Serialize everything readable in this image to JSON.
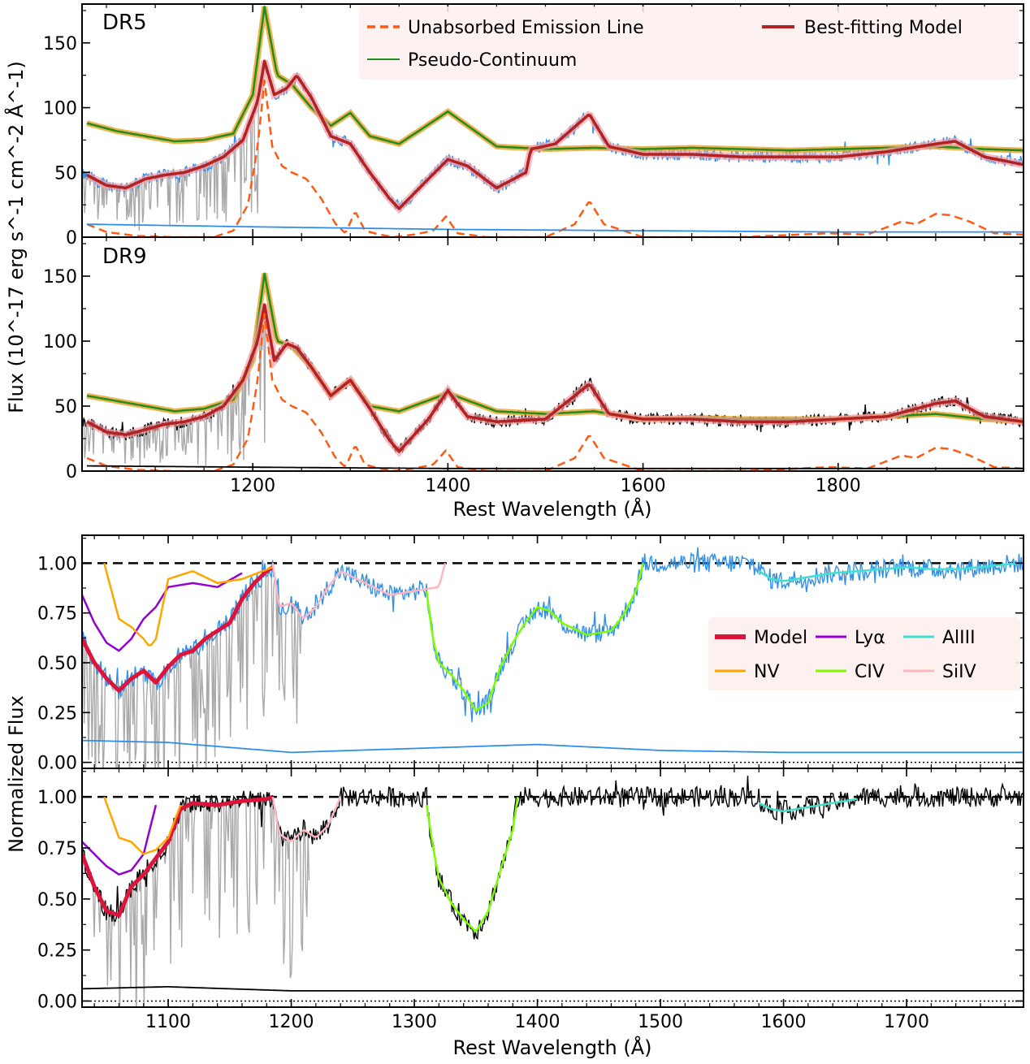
{
  "chart_data": [
    {
      "type": "line",
      "title": "DR5",
      "xlabel": "",
      "ylabel": "Flux (10^-17 erg s^-1 cm^-2 Å^-1)",
      "xlim": [
        1025,
        1990
      ],
      "ylim": [
        0,
        180
      ],
      "x_ticks": [
        1200,
        1400,
        1600,
        1800
      ],
      "y_ticks": [
        0,
        50,
        100,
        150
      ],
      "legend_position": "top-right",
      "legend": [
        {
          "name": "Unabsorbed Emission Line",
          "color": "#ff5a14",
          "style": "dashed"
        },
        {
          "name": "Best-fitting Model",
          "color": "#b22222",
          "style": "solid"
        },
        {
          "name": "Pseudo-Continuum",
          "color": "#228b22",
          "style": "solid"
        }
      ],
      "series": [
        {
          "name": "Pseudo-Continuum",
          "color": "#228b22",
          "x": [
            1030,
            1060,
            1090,
            1120,
            1150,
            1180,
            1200,
            1212,
            1225,
            1240,
            1260,
            1280,
            1300,
            1320,
            1350,
            1400,
            1450,
            1500,
            1550,
            1600,
            1650,
            1700,
            1750,
            1800,
            1850,
            1900,
            1950,
            1990
          ],
          "y": [
            88,
            82,
            78,
            74,
            75,
            80,
            110,
            178,
            125,
            118,
            100,
            86,
            96,
            78,
            72,
            97,
            70,
            68,
            69,
            68,
            69,
            68,
            67,
            68,
            69,
            70,
            68,
            67
          ]
        },
        {
          "name": "Best-fitting Model",
          "color": "#b22222",
          "x": [
            1030,
            1050,
            1070,
            1090,
            1110,
            1130,
            1150,
            1170,
            1190,
            1205,
            1212,
            1222,
            1235,
            1245,
            1260,
            1280,
            1300,
            1320,
            1340,
            1350,
            1380,
            1400,
            1420,
            1450,
            1480,
            1485,
            1510,
            1545,
            1565,
            1600,
            1650,
            1700,
            1750,
            1800,
            1850,
            1900,
            1920,
            1950,
            1990
          ],
          "y": [
            48,
            40,
            38,
            45,
            48,
            50,
            55,
            62,
            75,
            105,
            136,
            110,
            115,
            125,
            108,
            78,
            72,
            50,
            30,
            22,
            45,
            60,
            55,
            38,
            50,
            68,
            72,
            95,
            70,
            64,
            64,
            62,
            62,
            62,
            66,
            72,
            74,
            62,
            56
          ]
        },
        {
          "name": "Unabsorbed Emission Line",
          "color": "#ff5a14",
          "x": [
            1030,
            1050,
            1080,
            1120,
            1160,
            1180,
            1195,
            1205,
            1212,
            1220,
            1230,
            1240,
            1255,
            1270,
            1285,
            1295,
            1305,
            1315,
            1330,
            1345,
            1365,
            1385,
            1398,
            1410,
            1440,
            1500,
            1530,
            1545,
            1560,
            1600,
            1700,
            1790,
            1830,
            1865,
            1880,
            1900,
            1915,
            1935,
            1960,
            1990
          ],
          "y": [
            10,
            4,
            1,
            0,
            0,
            5,
            25,
            70,
            121,
            70,
            55,
            50,
            45,
            30,
            10,
            3,
            20,
            5,
            2,
            0,
            2,
            5,
            16,
            3,
            0,
            0,
            10,
            28,
            10,
            0,
            0,
            3,
            2,
            12,
            10,
            18,
            17,
            12,
            3,
            2
          ]
        },
        {
          "name": "Flux Error",
          "color": "#2f8fe8",
          "x": [
            1030,
            1200,
            1400,
            1600,
            1800,
            1990
          ],
          "y": [
            10,
            8,
            6,
            5,
            4,
            4
          ]
        }
      ]
    },
    {
      "type": "line",
      "title": "DR9",
      "xlabel": "Rest Wavelength (Å)",
      "ylabel": "Flux (10^-17 erg s^-1 cm^-2 Å^-1)",
      "xlim": [
        1025,
        1990
      ],
      "ylim": [
        0,
        180
      ],
      "x_ticks": [
        1200,
        1400,
        1600,
        1800
      ],
      "y_ticks": [
        0,
        50,
        100,
        150
      ],
      "series": [
        {
          "name": "Pseudo-Continuum",
          "color": "#228b22",
          "x": [
            1030,
            1060,
            1090,
            1120,
            1150,
            1180,
            1200,
            1212,
            1225,
            1240,
            1260,
            1280,
            1300,
            1320,
            1350,
            1400,
            1450,
            1500,
            1550,
            1600,
            1650,
            1700,
            1750,
            1800,
            1850,
            1900,
            1950,
            1990
          ],
          "y": [
            58,
            54,
            50,
            46,
            48,
            55,
            85,
            152,
            100,
            96,
            80,
            58,
            70,
            50,
            46,
            60,
            46,
            44,
            46,
            40,
            41,
            40,
            40,
            40,
            42,
            44,
            40,
            38
          ]
        },
        {
          "name": "Best-fitting Model",
          "color": "#b22222",
          "x": [
            1030,
            1050,
            1070,
            1090,
            1110,
            1130,
            1150,
            1170,
            1190,
            1205,
            1212,
            1222,
            1235,
            1245,
            1260,
            1280,
            1300,
            1320,
            1340,
            1350,
            1380,
            1400,
            1420,
            1450,
            1500,
            1545,
            1565,
            1600,
            1650,
            1700,
            1750,
            1800,
            1850,
            1900,
            1920,
            1950,
            1990
          ],
          "y": [
            38,
            30,
            28,
            32,
            36,
            38,
            42,
            50,
            70,
            100,
            128,
            85,
            98,
            95,
            80,
            58,
            70,
            48,
            24,
            15,
            40,
            62,
            42,
            38,
            40,
            67,
            44,
            40,
            40,
            38,
            38,
            40,
            42,
            52,
            54,
            42,
            38
          ]
        },
        {
          "name": "Unabsorbed Emission Line",
          "color": "#ff5a14",
          "x": [
            1030,
            1050,
            1080,
            1120,
            1160,
            1180,
            1195,
            1205,
            1212,
            1220,
            1230,
            1240,
            1255,
            1270,
            1285,
            1295,
            1305,
            1315,
            1330,
            1345,
            1365,
            1385,
            1398,
            1410,
            1440,
            1500,
            1530,
            1545,
            1560,
            1600,
            1700,
            1790,
            1830,
            1865,
            1880,
            1900,
            1915,
            1935,
            1960,
            1990
          ],
          "y": [
            10,
            4,
            1,
            0,
            0,
            5,
            25,
            70,
            121,
            70,
            55,
            50,
            45,
            30,
            10,
            3,
            20,
            5,
            2,
            0,
            2,
            5,
            16,
            3,
            0,
            0,
            10,
            28,
            10,
            0,
            0,
            3,
            2,
            12,
            10,
            18,
            17,
            12,
            3,
            2
          ]
        },
        {
          "name": "Flux Error",
          "color": "#000000",
          "x": [
            1030,
            1200,
            1400,
            1600,
            1800,
            1990
          ],
          "y": [
            4,
            3,
            2,
            2,
            2,
            2
          ]
        }
      ]
    },
    {
      "type": "line",
      "title": "",
      "xlabel": "",
      "ylabel": "Normalized Flux",
      "xlim": [
        1030,
        1795
      ],
      "ylim": [
        -0.03,
        1.14
      ],
      "x_ticks": [
        1100,
        1200,
        1300,
        1400,
        1500,
        1600,
        1700
      ],
      "y_ticks": [
        "0.00",
        "0.25",
        "0.50",
        "0.75",
        "1.00"
      ],
      "legend_position": "center-right",
      "legend": [
        {
          "name": "Model",
          "color": "#dc143c"
        },
        {
          "name": "Lyα",
          "color": "#9400d3"
        },
        {
          "name": "AlIII",
          "color": "#40e0d0"
        },
        {
          "name": "NV",
          "color": "#ffa500"
        },
        {
          "name": "CIV",
          "color": "#7cfc00"
        },
        {
          "name": "SiIV",
          "color": "#ffb6c1"
        }
      ],
      "series": [
        {
          "name": "Model",
          "color": "#dc143c",
          "x": [
            1030,
            1040,
            1050,
            1060,
            1070,
            1080,
            1090,
            1100,
            1110,
            1120,
            1130,
            1140,
            1150,
            1160,
            1170,
            1180,
            1185
          ],
          "y": [
            0.62,
            0.5,
            0.42,
            0.36,
            0.42,
            0.46,
            0.4,
            0.48,
            0.54,
            0.56,
            0.62,
            0.66,
            0.7,
            0.82,
            0.9,
            0.96,
            0.98
          ]
        },
        {
          "name": "Lyα",
          "color": "#9400d3",
          "x": [
            1030,
            1040,
            1050,
            1060,
            1070,
            1080,
            1090,
            1100,
            1120,
            1140,
            1160
          ],
          "y": [
            0.84,
            0.7,
            0.6,
            0.56,
            0.62,
            0.72,
            0.78,
            0.88,
            0.9,
            0.88,
            0.95
          ]
        },
        {
          "name": "NV",
          "color": "#ffa500",
          "x": [
            1048,
            1060,
            1070,
            1080,
            1085,
            1090,
            1100,
            1120,
            1140,
            1160,
            1185
          ],
          "y": [
            1.0,
            0.72,
            0.68,
            0.62,
            0.58,
            0.62,
            0.92,
            0.96,
            0.9,
            0.92,
            0.98
          ]
        },
        {
          "name": "SiIV",
          "color": "#ffb6c1",
          "x": [
            1185,
            1190,
            1200,
            1210,
            1220,
            1230,
            1240,
            1260,
            1280,
            1300,
            1320,
            1325
          ],
          "y": [
            1.0,
            0.78,
            0.8,
            0.72,
            0.78,
            0.88,
            0.96,
            0.9,
            0.84,
            0.86,
            0.88,
            1.0
          ]
        },
        {
          "name": "CIV",
          "color": "#7cfc00",
          "x": [
            1310,
            1315,
            1320,
            1330,
            1340,
            1350,
            1360,
            1370,
            1380,
            1390,
            1400,
            1410,
            1420,
            1440,
            1460,
            1470,
            1480,
            1486
          ],
          "y": [
            0.86,
            0.62,
            0.5,
            0.44,
            0.36,
            0.26,
            0.3,
            0.48,
            0.6,
            0.7,
            0.78,
            0.76,
            0.7,
            0.64,
            0.66,
            0.74,
            0.86,
            1.0
          ]
        },
        {
          "name": "AlIII",
          "color": "#40e0d0",
          "x": [
            1580,
            1590,
            1600,
            1620,
            1640,
            1700,
            1720,
            1740,
            1760,
            1790
          ],
          "y": [
            0.96,
            0.92,
            0.91,
            0.93,
            0.95,
            0.98,
            0.97,
            0.97,
            0.98,
            1.0
          ]
        },
        {
          "name": "Flux Error",
          "color": "#2f8fe8",
          "x": [
            1030,
            1100,
            1200,
            1300,
            1400,
            1500,
            1600,
            1700,
            1795
          ],
          "y": [
            0.11,
            0.1,
            0.05,
            0.07,
            0.09,
            0.06,
            0.05,
            0.05,
            0.05
          ]
        }
      ]
    },
    {
      "type": "line",
      "title": "",
      "xlabel": "Rest Wavelength (Å)",
      "ylabel": "Normalized Flux",
      "xlim": [
        1030,
        1795
      ],
      "ylim": [
        -0.03,
        1.14
      ],
      "x_ticks": [
        1100,
        1200,
        1300,
        1400,
        1500,
        1600,
        1700
      ],
      "y_ticks": [
        "0.00",
        "0.25",
        "0.50",
        "0.75",
        "1.00"
      ],
      "series": [
        {
          "name": "Model",
          "color": "#dc143c",
          "x": [
            1030,
            1040,
            1050,
            1060,
            1070,
            1080,
            1090,
            1100,
            1110,
            1120,
            1140,
            1160,
            1180,
            1185
          ],
          "y": [
            0.72,
            0.56,
            0.44,
            0.42,
            0.56,
            0.62,
            0.7,
            0.78,
            0.94,
            0.97,
            0.96,
            0.98,
            0.99,
            1.0
          ]
        },
        {
          "name": "Lyα",
          "color": "#9400d3",
          "x": [
            1030,
            1040,
            1050,
            1060,
            1070,
            1080,
            1090
          ],
          "y": [
            0.78,
            0.72,
            0.66,
            0.62,
            0.64,
            0.72,
            0.96
          ]
        },
        {
          "name": "NV",
          "color": "#ffa500",
          "x": [
            1048,
            1060,
            1070,
            1080,
            1090,
            1100,
            1110
          ],
          "y": [
            1.0,
            0.8,
            0.78,
            0.72,
            0.74,
            0.8,
            0.96
          ]
        },
        {
          "name": "SiIV",
          "color": "#ffb6c1",
          "x": [
            1185,
            1190,
            1200,
            1210,
            1220,
            1230,
            1240
          ],
          "y": [
            1.0,
            0.82,
            0.78,
            0.84,
            0.8,
            0.86,
            1.0
          ]
        },
        {
          "name": "CIV",
          "color": "#7cfc00",
          "x": [
            1310,
            1315,
            1320,
            1330,
            1340,
            1350,
            1360,
            1370,
            1380,
            1384
          ],
          "y": [
            0.96,
            0.76,
            0.6,
            0.48,
            0.4,
            0.34,
            0.44,
            0.64,
            0.84,
            1.0
          ]
        },
        {
          "name": "AlIII",
          "color": "#40e0d0",
          "x": [
            1580,
            1590,
            1600,
            1620,
            1640,
            1660
          ],
          "y": [
            0.97,
            0.94,
            0.93,
            0.95,
            0.97,
            0.99
          ]
        },
        {
          "name": "Flux Error",
          "color": "#000000",
          "x": [
            1030,
            1100,
            1200,
            1300,
            1400,
            1500,
            1600,
            1700,
            1795
          ],
          "y": [
            0.06,
            0.07,
            0.05,
            0.05,
            0.05,
            0.05,
            0.05,
            0.05,
            0.05
          ]
        }
      ]
    }
  ]
}
